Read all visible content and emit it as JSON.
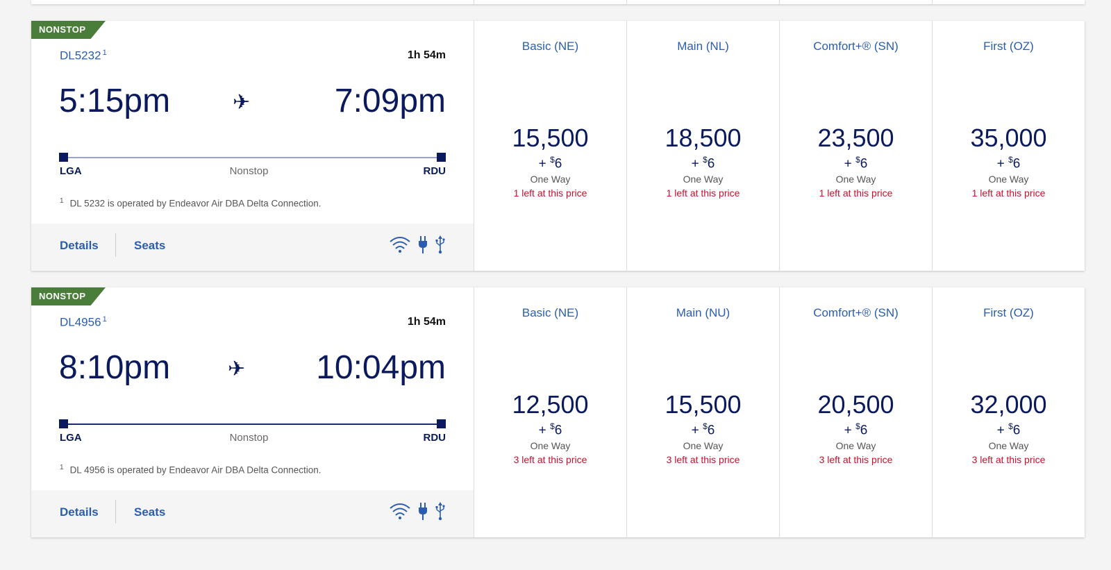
{
  "flights": [
    {
      "badge": "NONSTOP",
      "flight_number": "DL5232",
      "footnote_marker": "1",
      "duration": "1h 54m",
      "depart_time": "5:15pm",
      "arrive_time": "7:09pm",
      "origin": "LGA",
      "destination": "RDU",
      "stops": "Nonstop",
      "footnote": "DL 5232 is operated by Endeavor Air DBA Delta Connection.",
      "details_label": "Details",
      "seats_label": "Seats",
      "fares": [
        {
          "name": "Basic (NE)",
          "miles": "15,500",
          "tax_prefix": "+",
          "tax_currency": "$",
          "tax": "6",
          "trip": "One Way",
          "availability": "1 left at this price"
        },
        {
          "name": "Main (NL)",
          "miles": "18,500",
          "tax_prefix": "+",
          "tax_currency": "$",
          "tax": "6",
          "trip": "One Way",
          "availability": "1 left at this price"
        },
        {
          "name": "Comfort+® (SN)",
          "miles": "23,500",
          "tax_prefix": "+",
          "tax_currency": "$",
          "tax": "6",
          "trip": "One Way",
          "availability": "1 left at this price"
        },
        {
          "name": "First (OZ)",
          "miles": "35,000",
          "tax_prefix": "+",
          "tax_currency": "$",
          "tax": "6",
          "trip": "One Way",
          "availability": "1 left at this price"
        }
      ]
    },
    {
      "badge": "NONSTOP",
      "flight_number": "DL4956",
      "footnote_marker": "1",
      "duration": "1h 54m",
      "depart_time": "8:10pm",
      "arrive_time": "10:04pm",
      "origin": "LGA",
      "destination": "RDU",
      "stops": "Nonstop",
      "footnote": "DL 4956 is operated by Endeavor Air DBA Delta Connection.",
      "details_label": "Details",
      "seats_label": "Seats",
      "fares": [
        {
          "name": "Basic (NE)",
          "miles": "12,500",
          "tax_prefix": "+",
          "tax_currency": "$",
          "tax": "6",
          "trip": "One Way",
          "availability": "3 left at this price"
        },
        {
          "name": "Main (NU)",
          "miles": "15,500",
          "tax_prefix": "+",
          "tax_currency": "$",
          "tax": "6",
          "trip": "One Way",
          "availability": "3 left at this price"
        },
        {
          "name": "Comfort+® (SN)",
          "miles": "20,500",
          "tax_prefix": "+",
          "tax_currency": "$",
          "tax": "6",
          "trip": "One Way",
          "availability": "3 left at this price"
        },
        {
          "name": "First (OZ)",
          "miles": "32,000",
          "tax_prefix": "+",
          "tax_currency": "$",
          "tax": "6",
          "trip": "One Way",
          "availability": "3 left at this price"
        }
      ]
    }
  ],
  "icons": {
    "plane": "✈",
    "amenities": [
      "wifi-icon",
      "power-outlet-icon",
      "usb-icon"
    ]
  },
  "colors": {
    "brand_navy": "#0a1a5c",
    "link_blue": "#2a5db0",
    "nonstop_green": "#4a7c3a",
    "availability_red": "#c8102e"
  }
}
